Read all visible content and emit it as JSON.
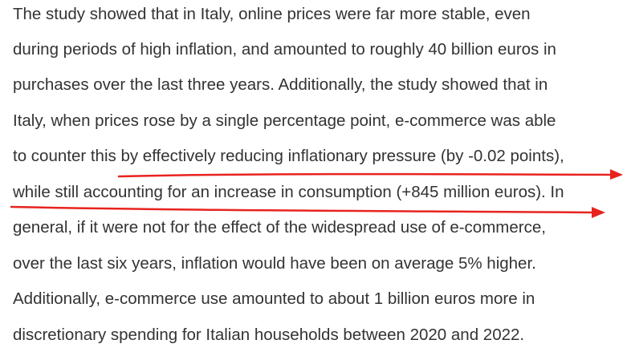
{
  "article": {
    "lines": [
      "The study showed that in Italy, online prices were far more stable, even",
      "during periods of high inflation, and amounted to roughly 40 billion euros in",
      "purchases over the last three years. Additionally, the study showed that in",
      "Italy, when prices rose by a single percentage point, e-commerce was able",
      "to counter this by effectively reducing inflationary pressure (by -0.02 points),",
      "while still accounting for an increase in consumption (+845 million euros). In",
      "general, if it were not for the effect of the widespread use of e-commerce,",
      "over the last six years, inflation would have been on average 5% higher.",
      "Additionally, e-commerce use amounted to about 1 billion euros more in",
      "discretionary spending for Italian households between 2020 and 2022."
    ]
  },
  "annotation": {
    "color": "#e8231f"
  }
}
